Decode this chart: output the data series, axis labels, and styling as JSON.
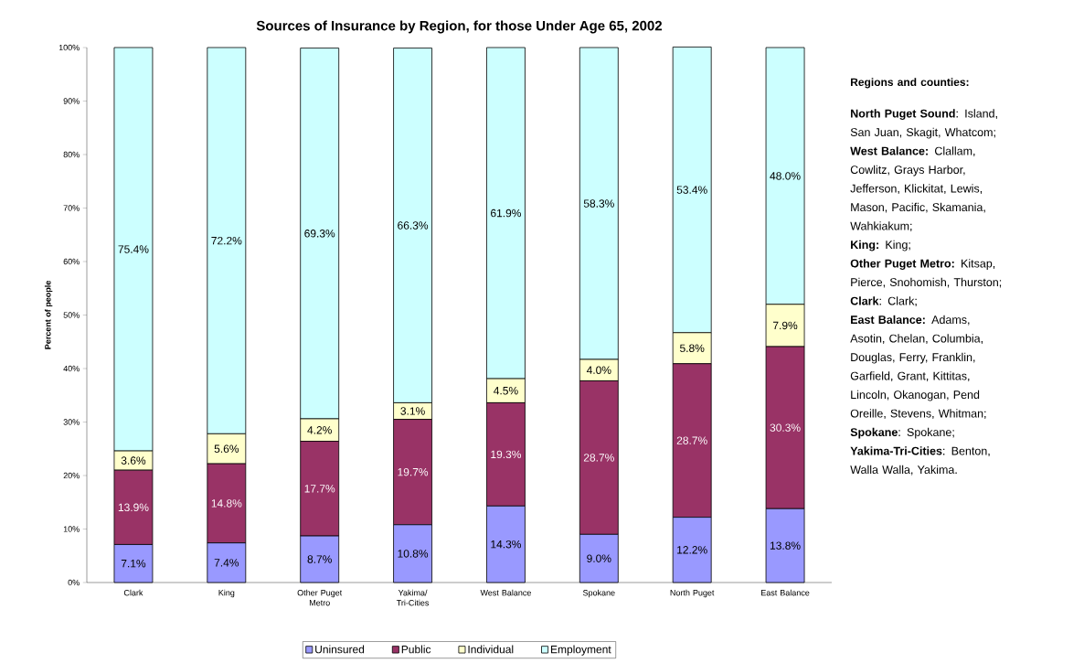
{
  "chart_data": {
    "type": "bar",
    "stacked": true,
    "title": "Sources of Insurance by Region, for those Under Age 65, 2002",
    "ylabel": "Percent of people",
    "categories": [
      "Clark",
      "King",
      "Other Puget Metro",
      "Yakima/ Tri-Cities",
      "West Balance",
      "Spokane",
      "North Puget",
      "East Balance"
    ],
    "series": [
      {
        "name": "Uninsured",
        "color": "#9999ff",
        "values": [
          7.1,
          7.4,
          8.7,
          10.8,
          14.3,
          9.0,
          12.2,
          13.8
        ],
        "value_labels": [
          "7.1%",
          "7.4%",
          "8.7%",
          "10.8%",
          "14.3%",
          "9.0%",
          "12.2%",
          "13.8%"
        ]
      },
      {
        "name": "Public",
        "color": "#993366",
        "values": [
          13.9,
          14.8,
          17.7,
          19.7,
          19.3,
          28.7,
          28.7,
          30.3
        ],
        "value_labels": [
          "13.9%",
          "14.8%",
          "17.7%",
          "19.7%",
          "19.3%",
          "28.7%",
          "28.7%",
          "30.3%"
        ]
      },
      {
        "name": "Individual",
        "color": "#ffffcc",
        "values": [
          3.6,
          5.6,
          4.2,
          3.1,
          4.5,
          4.0,
          5.8,
          7.9
        ],
        "value_labels": [
          "3.6%",
          "5.6%",
          "4.2%",
          "3.1%",
          "4.5%",
          "4.0%",
          "5.8%",
          "7.9%"
        ]
      },
      {
        "name": "Employment",
        "color": "#ccffff",
        "values": [
          75.4,
          72.2,
          69.3,
          66.3,
          61.9,
          58.3,
          53.4,
          48.0
        ],
        "value_labels": [
          "75.4%",
          "72.2%",
          "69.3%",
          "66.3%",
          "61.9%",
          "58.3%",
          "53.4%",
          "48.0%"
        ]
      }
    ],
    "ylim": [
      0,
      100
    ],
    "yticks": [
      {
        "value": 0,
        "label": "0%"
      },
      {
        "value": 10,
        "label": "10%"
      },
      {
        "value": 20,
        "label": "20%"
      },
      {
        "value": 30,
        "label": "30%"
      },
      {
        "value": 40,
        "label": "40%"
      },
      {
        "value": 50,
        "label": "50%"
      },
      {
        "value": 60,
        "label": "60%"
      },
      {
        "value": 70,
        "label": "70%"
      },
      {
        "value": 80,
        "label": "80%"
      },
      {
        "value": 90,
        "label": "90%"
      },
      {
        "value": 100,
        "label": "100%"
      }
    ],
    "grid": false,
    "legend": "bottom",
    "annotations": [
      "Regions and counties:",
      "**North Puget Sound**: Island, San Juan, Skagit, Whatcom;",
      "**West Balance:** Clallam, Cowlitz, Grays Harbor, Jefferson, Klickitat, Lewis, Mason, Pacific, Skamania, Wahkiakum;",
      "**King:** King;",
      "**Other Puget Metro:** Kitsap, Pierce, Snohomish, Thurston;",
      "**Clark**: Clark;",
      "**East Balance:** Adams, Asotin, Chelan, Columbia, Douglas, Ferry, Franklin, Garfield, Grant, Kittitas, Lincoln, Okanogan, Pend Oreille, Stevens, Whitman;",
      "**Spokane**: Spokane;",
      "**Yakima-Tri-Cities**: Benton, Walla Walla, Yakima."
    ]
  }
}
